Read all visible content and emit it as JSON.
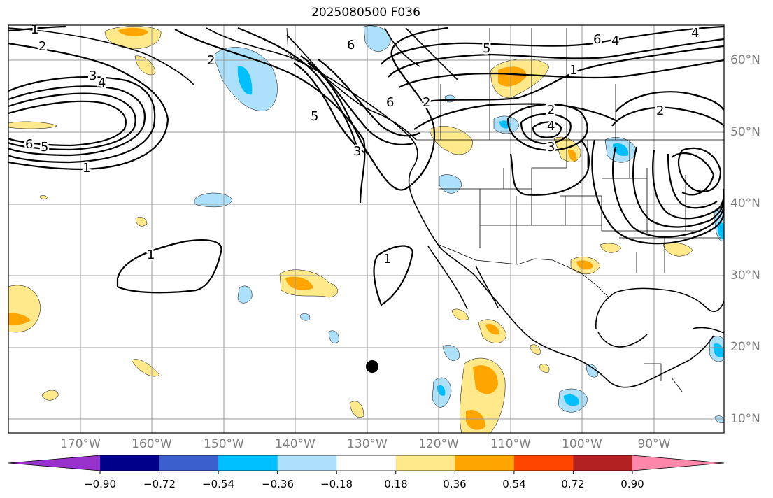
{
  "title": "2025080500 F036",
  "lat_labels": [
    "60°N",
    "50°N",
    "40°N",
    "30°N",
    "20°N",
    "10°N"
  ],
  "lon_labels": [
    "170°W",
    "160°W",
    "150°W",
    "140°W",
    "130°W",
    "120°W",
    "110°W",
    "100°W",
    "90°W"
  ],
  "contour_labels": [
    "1",
    "2",
    "3",
    "4",
    "5",
    "6"
  ],
  "colorbar": {
    "ticks": [
      "−0.90",
      "−0.72",
      "−0.54",
      "−0.36",
      "−0.18",
      "0.18",
      "0.36",
      "0.54",
      "0.72",
      "0.90"
    ],
    "colors": [
      "#9932cc",
      "#00008b",
      "#3a5fcd",
      "#00bfff",
      "#ade1fb",
      "#ffffff",
      "#ffe98a",
      "#ffa500",
      "#ff4500",
      "#b22222",
      "#ff88aa"
    ]
  },
  "colors": {
    "grid": "#9a9a9a",
    "label_gray": "#808080",
    "contour": "#000000"
  }
}
